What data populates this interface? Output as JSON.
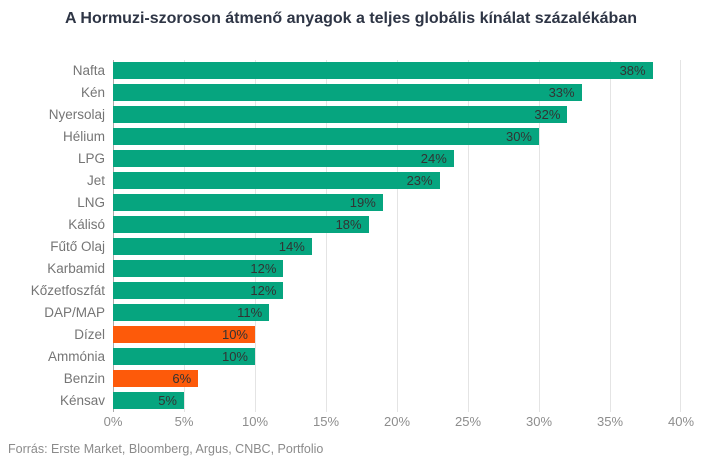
{
  "page": {
    "title": "A Hormuzi-szoroson átmenő anyagok a teljes globális kínálat százalékában",
    "source_note": "Forrás: Erste Market, Bloomberg, Argus, CNBC, Portfolio"
  },
  "colors": {
    "bar_green": "#06a57f",
    "bar_orange": "#fd5a0a",
    "value_label": "#333333",
    "category_label": "#757575",
    "tick_label": "#8d8d8d",
    "gridline": "#e4e4e4",
    "axis_line": "#aaaaaa",
    "title_text": "#2e3545"
  },
  "chart_data": {
    "type": "bar",
    "orientation": "horizontal",
    "title": "A Hormuzi-szoroson átmenő anyagok a teljes globális kínálat százalékában",
    "xlabel": "",
    "ylabel": "",
    "xlim": [
      0,
      40
    ],
    "x_ticks": [
      "0%",
      "5%",
      "10%",
      "15%",
      "20%",
      "25%",
      "30%",
      "35%",
      "40%"
    ],
    "grid": "vertical-only",
    "legend": "none",
    "categories": [
      "Nafta",
      "Kén",
      "Nyersolaj",
      "Hélium",
      "LPG",
      "Jet",
      "LNG",
      "Kálisó",
      "Fűtő Olaj",
      "Karbamid",
      "Kőzetfoszfát",
      "DAP/MAP",
      "Dízel",
      "Ammónia",
      "Benzin",
      "Kénsav"
    ],
    "values": [
      38,
      33,
      32,
      30,
      24,
      23,
      19,
      18,
      14,
      12,
      12,
      11,
      10,
      10,
      6,
      5
    ],
    "value_labels": [
      "38%",
      "33%",
      "32%",
      "30%",
      "24%",
      "23%",
      "19%",
      "18%",
      "14%",
      "12%",
      "12%",
      "11%",
      "10%",
      "10%",
      "6%",
      "5%"
    ],
    "bar_colors": [
      "green",
      "green",
      "green",
      "green",
      "green",
      "green",
      "green",
      "green",
      "green",
      "green",
      "green",
      "green",
      "orange",
      "green",
      "orange",
      "green"
    ],
    "source": "Forrás: Erste Market, Bloomberg, Argus, CNBC, Portfolio"
  }
}
